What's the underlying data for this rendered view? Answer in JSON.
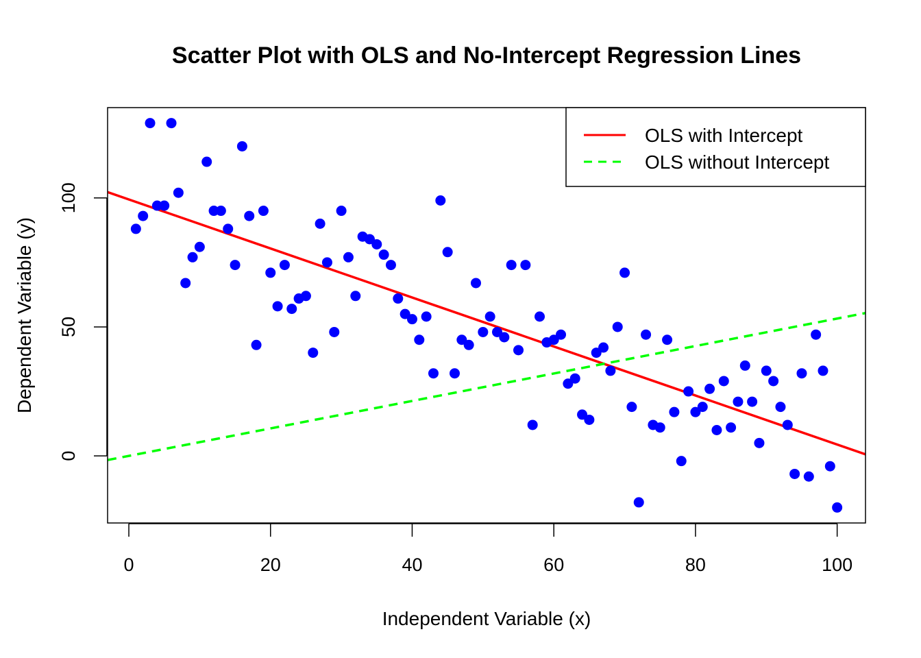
{
  "chart_data": {
    "type": "scatter",
    "title": "Scatter Plot with OLS and No-Intercept Regression Lines",
    "xlabel": "Independent Variable (x)",
    "ylabel": "Dependent Variable (y)",
    "xlim": [
      -3,
      104
    ],
    "ylim": [
      -26,
      135
    ],
    "x_ticks": [
      "0",
      "20",
      "40",
      "60",
      "80",
      "100"
    ],
    "x_tick_values": [
      0,
      20,
      40,
      60,
      80,
      100
    ],
    "y_ticks": [
      "0",
      "50",
      "100"
    ],
    "y_tick_values": [
      0,
      50,
      100
    ],
    "points": {
      "color": "#0000ff",
      "x": [
        1,
        2,
        3,
        4,
        5,
        6,
        7,
        8,
        9,
        10,
        11,
        12,
        13,
        14,
        15,
        16,
        17,
        18,
        19,
        20,
        21,
        22,
        23,
        24,
        25,
        26,
        27,
        28,
        29,
        30,
        31,
        32,
        33,
        34,
        35,
        36,
        37,
        38,
        39,
        40,
        41,
        42,
        43,
        44,
        45,
        46,
        47,
        48,
        49,
        50,
        51,
        52,
        53,
        54,
        55,
        56,
        57,
        58,
        59,
        60,
        61,
        62,
        63,
        64,
        65,
        66,
        67,
        68,
        69,
        70,
        71,
        72,
        73,
        74,
        75,
        76,
        77,
        78,
        79,
        80,
        81,
        82,
        83,
        84,
        85,
        86,
        87,
        88,
        89,
        90,
        91,
        92,
        93,
        94,
        95,
        96,
        97,
        98,
        99,
        100
      ],
      "y": [
        88,
        93,
        129,
        97,
        97,
        129,
        102,
        67,
        77,
        81,
        114,
        95,
        95,
        88,
        74,
        120,
        93,
        43,
        95,
        71,
        58,
        74,
        57,
        61,
        62,
        40,
        90,
        75,
        48,
        95,
        77,
        62,
        85,
        84,
        82,
        78,
        74,
        61,
        55,
        53,
        45,
        54,
        32,
        99,
        79,
        32,
        45,
        43,
        67,
        48,
        54,
        48,
        46,
        74,
        41,
        74,
        12,
        54,
        44,
        45,
        47,
        28,
        30,
        16,
        14,
        40,
        42,
        33,
        50,
        71,
        19,
        -18,
        47,
        12,
        11,
        45,
        17,
        -2,
        25,
        17,
        19,
        26,
        10,
        29,
        11,
        21,
        35,
        21,
        5,
        33,
        29,
        19,
        12,
        -7,
        32,
        -8,
        47,
        33,
        -4,
        -20
      ]
    },
    "series": [
      {
        "name": "OLS with Intercept",
        "color": "#ff0000",
        "style": "solid",
        "intercept": 99.4,
        "slope": -0.95
      },
      {
        "name": "OLS without Intercept",
        "color": "#00ff00",
        "style": "dashed",
        "intercept": 0,
        "slope": 0.5324
      }
    ],
    "legend_position": "top-right",
    "grid": false
  }
}
